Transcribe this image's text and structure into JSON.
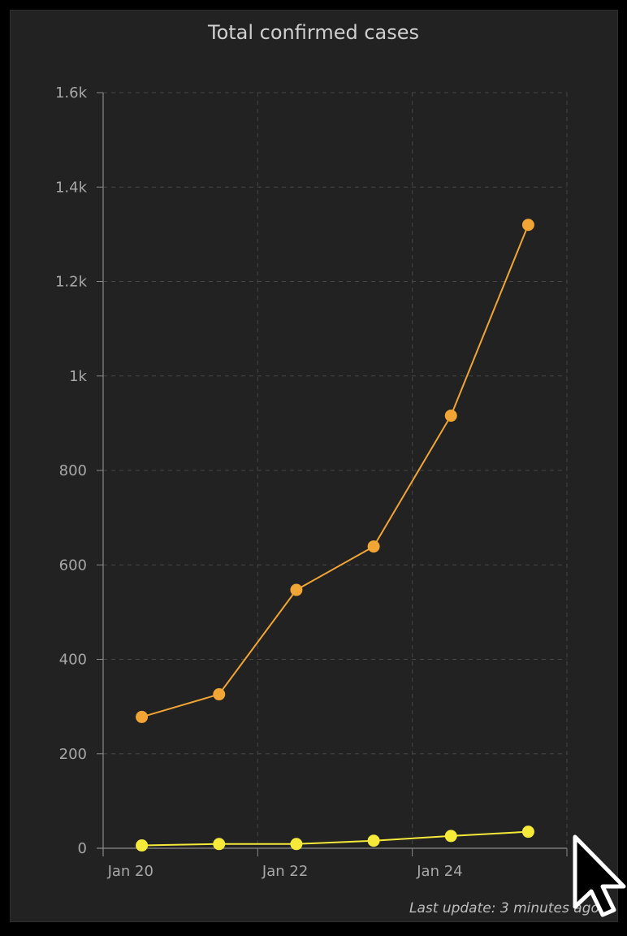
{
  "chart_data": {
    "type": "line",
    "title": "Total confirmed cases",
    "x": [
      "2020-01-20",
      "2020-01-21",
      "2020-01-22",
      "2020-01-23",
      "2020-01-24",
      "2020-01-25"
    ],
    "x_ticks": [
      {
        "date": "2020-01-20",
        "label": "Jan 20"
      },
      {
        "date": "2020-01-22",
        "label": "Jan 22"
      },
      {
        "date": "2020-01-24",
        "label": "Jan 24"
      }
    ],
    "xlim": [
      "2020-01-19T12:00",
      "2020-01-25T12:00"
    ],
    "ylim": [
      0,
      1600
    ],
    "y_ticks": [
      {
        "value": 0,
        "label": "0"
      },
      {
        "value": 200,
        "label": "200"
      },
      {
        "value": 400,
        "label": "400"
      },
      {
        "value": 600,
        "label": "600"
      },
      {
        "value": 800,
        "label": "800"
      },
      {
        "value": 1000,
        "label": "1k"
      },
      {
        "value": 1200,
        "label": "1.2k"
      },
      {
        "value": 1400,
        "label": "1.4k"
      },
      {
        "value": 1600,
        "label": "1.6k"
      }
    ],
    "grid": true,
    "series": [
      {
        "values": [
          278,
          326,
          547,
          639,
          916,
          1320
        ],
        "color": "#f0a535"
      },
      {
        "values": [
          6,
          9,
          9,
          16,
          26,
          35
        ],
        "color": "#f5e93a"
      }
    ]
  },
  "footer": {
    "last_update": "Last update: 3 minutes ago"
  }
}
